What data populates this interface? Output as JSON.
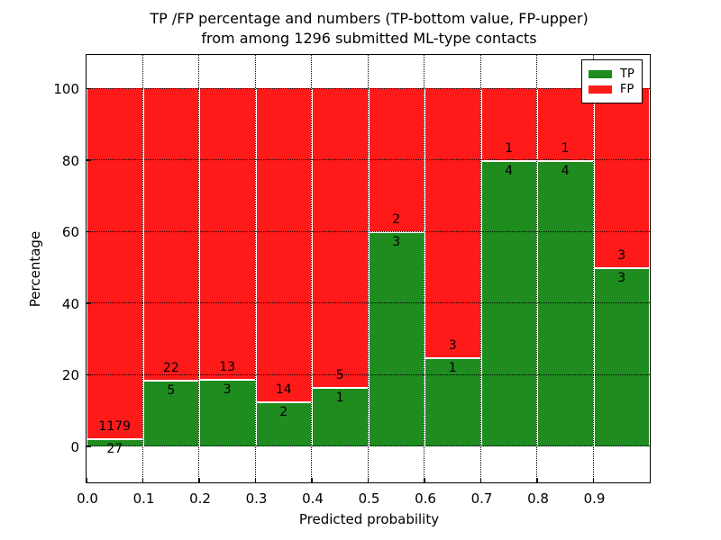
{
  "title": {
    "line1": "TP /FP percentage and numbers (TP-bottom value, FP-upper)",
    "line2": "from among 1296 submitted ML-type contacts"
  },
  "axes": {
    "xlabel": "Predicted probability",
    "ylabel": "Percentage",
    "xtick_labels": [
      "0.0",
      "0.1",
      "0.2",
      "0.3",
      "0.4",
      "0.5",
      "0.6",
      "0.7",
      "0.8",
      "0.9"
    ],
    "ytick_labels": [
      "0",
      "20",
      "40",
      "60",
      "80",
      "100"
    ],
    "ytick_values": [
      0,
      20,
      40,
      60,
      80,
      100
    ],
    "xlim": [
      0.0,
      1.0
    ],
    "ylim": [
      -10,
      110
    ],
    "grid_style": "dotted black, horizontal and vertical"
  },
  "legend": {
    "position": "upper right",
    "entries": [
      {
        "label": "TP",
        "color": "#1e8c1e"
      },
      {
        "label": "FP",
        "color": "#ff1a1a"
      }
    ]
  },
  "chart_data": {
    "type": "bar",
    "stacked": true,
    "normalized": "each 0.1-wide bin stacks to 100%",
    "title": "TP /FP percentage and numbers (TP-bottom value, FP-upper) from among 1296 submitted ML-type contacts",
    "xlabel": "Predicted probability",
    "ylabel": "Percentage",
    "total_contacts": 1296,
    "bin_edges": [
      0.0,
      0.1,
      0.2,
      0.3,
      0.4,
      0.5,
      0.6,
      0.7,
      0.8,
      0.9,
      1.0
    ],
    "categories": [
      "0.0-0.1",
      "0.1-0.2",
      "0.2-0.3",
      "0.3-0.4",
      "0.4-0.5",
      "0.5-0.6",
      "0.6-0.7",
      "0.7-0.8",
      "0.8-0.9",
      "0.9-1.0"
    ],
    "series": [
      {
        "name": "TP",
        "color": "#1e8c1e",
        "counts": [
          27,
          5,
          3,
          2,
          1,
          3,
          1,
          4,
          4,
          3
        ]
      },
      {
        "name": "FP",
        "color": "#ff1a1a",
        "counts": [
          1179,
          22,
          13,
          14,
          5,
          2,
          3,
          1,
          1,
          3
        ]
      }
    ],
    "tp_percent": [
      2.2,
      18.5,
      18.8,
      12.5,
      16.7,
      60.0,
      25.0,
      80.0,
      80.0,
      50.0
    ],
    "ylim": [
      -10,
      110
    ],
    "xlim": [
      0.0,
      1.0
    ],
    "grid": true,
    "legend_position": "upper right"
  }
}
